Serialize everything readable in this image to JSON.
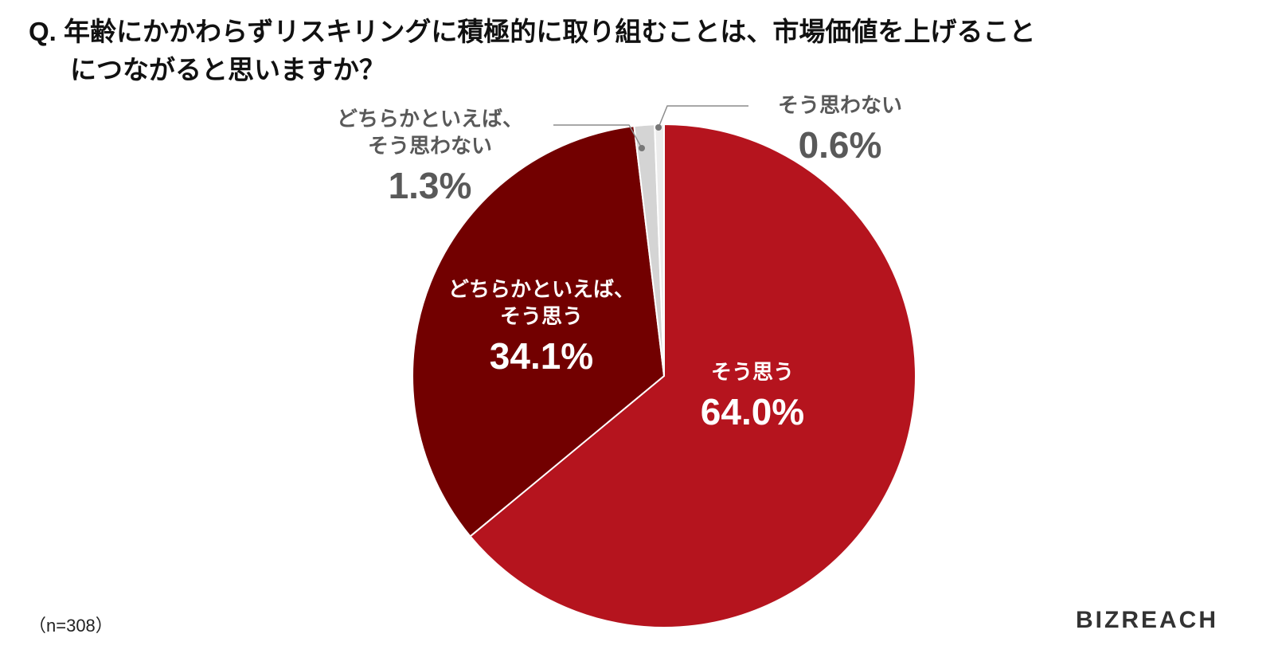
{
  "chart_data": {
    "type": "pie",
    "title": "Q. 年齢にかかわらずリスキリングに積極的に取り組むことは、市場価値を上げること\nにつながると思いますか？",
    "categories": [
      "そう思う",
      "どちらかといえば、\nそう思う",
      "どちらかといえば、\nそう思わない",
      "そう思わない"
    ],
    "values": [
      64.0,
      34.1,
      1.3,
      0.6
    ],
    "value_labels": [
      "64.0%",
      "34.1%",
      "1.3%",
      "0.6%"
    ],
    "colors": [
      "#b5141e",
      "#720000",
      "#d4d4d4",
      "#ececec"
    ],
    "note": "（n=308）",
    "logo": "BIZREACH"
  }
}
